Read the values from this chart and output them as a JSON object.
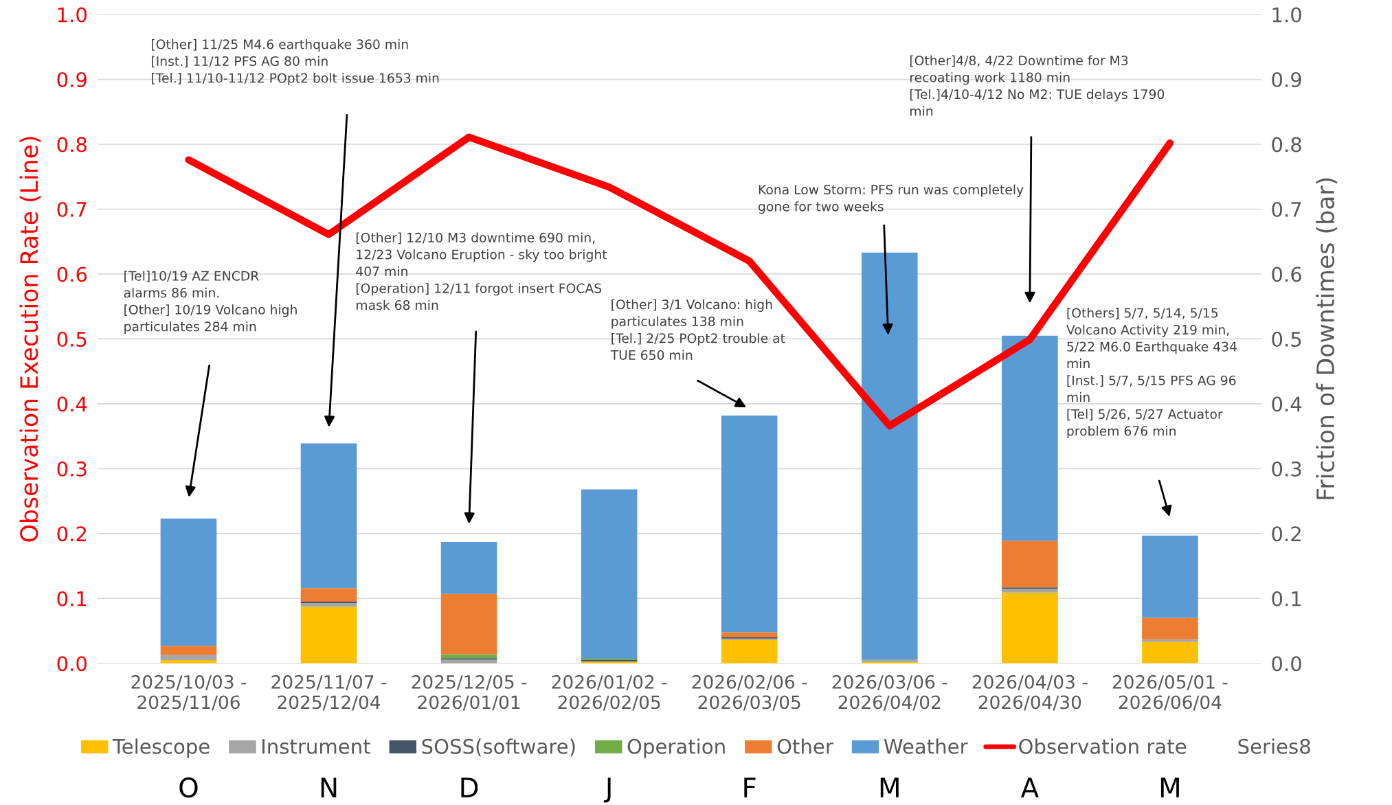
{
  "chart_data": {
    "type": "bar",
    "stacked": true,
    "categories": [
      "2025/10/03 -\n2025/11/06",
      "2025/11/07 -\n2025/12/04",
      "2025/12/05 -\n2026/01/01",
      "2026/01/02 -\n2026/02/05",
      "2026/02/06 -\n2026/03/05",
      "2026/03/06 -\n2026/04/02",
      "2026/04/03 -\n2026/04/30",
      "2026/05/01 -\n2026/06/04"
    ],
    "ylabel": "Observation Execution Rate (Line)",
    "y2label": "Friction of Downtimes (bar)",
    "ylim": [
      0.0,
      1.0
    ],
    "yticks": [
      {
        "value": 0,
        "label": "0.0"
      },
      0.1,
      0.2,
      0.3,
      0.4,
      0.5,
      0.6,
      0.7,
      0.8,
      0.9,
      {
        "value": 1,
        "label": "1.0"
      }
    ],
    "y2lim": [
      0.0,
      1.0
    ],
    "y2ticks": [
      {
        "value": 0,
        "label": "0.0"
      },
      0.1,
      0.2,
      0.3,
      0.4,
      0.5,
      0.6,
      0.7,
      0.8,
      0.9,
      {
        "value": 1,
        "label": "1.0"
      }
    ],
    "grid": "y",
    "legend": "bottom",
    "series": [
      {
        "name": "Telescope",
        "axis": "y2",
        "color": "#ffc000",
        "values": [
          0.005,
          0.087,
          0.0,
          0.003,
          0.036,
          0.002,
          0.109,
          0.033
        ]
      },
      {
        "name": "Instrument",
        "axis": "y2",
        "color": "#a5a5a5",
        "values": [
          0.008,
          0.006,
          0.006,
          0.0,
          0.002,
          0.004,
          0.006,
          0.004
        ]
      },
      {
        "name": "SOSS(software)",
        "axis": "y2",
        "color": "#44546a",
        "values": [
          0.0,
          0.002,
          0.002,
          0.002,
          0.002,
          0.0,
          0.002,
          0.0
        ]
      },
      {
        "name": "Operation",
        "axis": "y2",
        "color": "#70ad47",
        "values": [
          0.0,
          0.0,
          0.006,
          0.002,
          0.0,
          0.0,
          0.0,
          0.0
        ]
      },
      {
        "name": "Other",
        "axis": "y2",
        "color": "#ed7d31",
        "values": [
          0.014,
          0.021,
          0.093,
          0.0,
          0.008,
          0.0,
          0.072,
          0.033
        ]
      },
      {
        "name": "Weather",
        "axis": "y2",
        "color": "#5b9bd5",
        "values": [
          0.196,
          0.223,
          0.08,
          0.261,
          0.334,
          0.627,
          0.316,
          0.127
        ]
      },
      {
        "name": "Observation rate",
        "type": "line",
        "axis": "y",
        "color": "#ff0000",
        "values": [
          0.776,
          0.661,
          0.811,
          0.734,
          0.62,
          0.366,
          0.499,
          0.802
        ]
      },
      {
        "name": "Series8",
        "type": "line",
        "axis": "y",
        "values": [
          null,
          null,
          null,
          null,
          null,
          null,
          null,
          null
        ]
      }
    ],
    "annotations": [
      "[Tel]10/19 AZ ENCDR\nalarms 86 min.\n[Other] 10/19 Volcano high\nparticulates 284 min",
      "[Other] 11/25 M4.6 earthquake 360 min\n[Inst.] 11/12 PFS AG 80 min\n[Tel.] 11/10-11/12 POpt2 bolt issue 1653 min",
      "[Other] 12/10 M3 downtime 690 min,\n12/23 Volcano Eruption - sky too bright\n407 min\n[Operation] 12/11 forgot insert FOCAS\nmask 68 min",
      "[Other] 3/1 Volcano: high\nparticulates 138 min\n[Tel.] 2/25 POpt2 trouble at\nTUE 650 min",
      "Kona Low Storm: PFS run was completely\ngone for two weeks",
      "[Other]4/8, 4/22 Downtime for M3\nrecoating work 1180 min\n[Tel.]4/10-4/12 No M2: TUE delays 1790\nmin",
      "[Others] 5/7, 5/14, 5/15\nVolcano Activity 219 min,\n5/22 M6.0 Earthquake 434\nmin\n[Inst.] 5/7, 5/15 PFS AG 96\nmin\n[Tel] 5/26, 5/27 Actuator\nproblem 676 min",
      "O",
      "N",
      "D",
      "J",
      "F",
      "M",
      "A",
      "M"
    ]
  }
}
